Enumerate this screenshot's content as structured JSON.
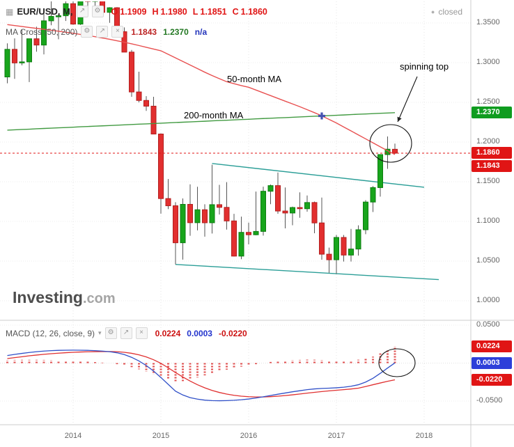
{
  "header": {
    "symbol_title": "EUR/USD, M,",
    "ohlc": [
      {
        "label": "O",
        "value": "1.1909"
      },
      {
        "label": "H",
        "value": "1.1980"
      },
      {
        "label": "L",
        "value": "1.1851"
      },
      {
        "label": "C",
        "value": "1.1860"
      }
    ],
    "status": "closed"
  },
  "indicator_rows": {
    "ma_cross": {
      "label": "MA Cross (50, 200)",
      "values": [
        {
          "text": "1.1843",
          "color": "#bb2222"
        },
        {
          "text": "1.2370",
          "color": "#227722"
        },
        {
          "text": "n/a",
          "color": "#2233bb"
        }
      ]
    },
    "macd": {
      "label": "MACD (12, 26, close, 9)",
      "values": [
        {
          "text": "0.0224",
          "color": "#cc1111"
        },
        {
          "text": "0.0003",
          "color": "#2233cc"
        },
        {
          "text": "-0.0220",
          "color": "#cc1111"
        }
      ]
    }
  },
  "annotations": {
    "ma50": "50-month MA",
    "ma200": "200-month MA",
    "spinning_top": "spinning top"
  },
  "watermark": {
    "brand": "Investing",
    "tld": ".com"
  },
  "icons": {
    "menu": "▦",
    "expand": "↗",
    "settings": "⚙",
    "close": "×",
    "caret": "▾",
    "dot": "●"
  },
  "badges": {
    "price": [
      {
        "text": "1.2370",
        "value": 1.237,
        "color": "#0f9c1f"
      },
      {
        "text": "1.1860",
        "value": 1.186,
        "color": "#e01515"
      },
      {
        "text": "1.1843",
        "value": 1.1843,
        "color": "#e01515"
      }
    ],
    "macd": [
      {
        "text": "0.0224",
        "value": 0.0224,
        "color": "#e01515"
      },
      {
        "text": "0.0003",
        "value": 0.0003,
        "color": "#2d3fd9"
      },
      {
        "text": "-0.0220",
        "value": -0.022,
        "color": "#e01515"
      }
    ]
  },
  "chart_data": [
    {
      "type": "candlestick",
      "title": "EUR/USD, Monthly",
      "start_month": "2013-04",
      "ylim": [
        0.98,
        1.375
      ],
      "y_ticks": [
        1.35,
        1.3,
        1.25,
        1.2,
        1.15,
        1.1,
        1.05,
        1.0
      ],
      "x_ticks": [
        {
          "label": "2014",
          "index": 9
        },
        {
          "label": "2015",
          "index": 21
        },
        {
          "label": "2016",
          "index": 33
        },
        {
          "label": "2017",
          "index": 45
        },
        {
          "label": "2018",
          "index": 57
        }
      ],
      "colors": {
        "up": "#18a51c",
        "up_border": "#0d7d10",
        "down": "#e22f2f",
        "down_border": "#b21f1f",
        "wick": "#555555",
        "trendline": "#2b9e97"
      },
      "price_line": {
        "value": 1.186,
        "color": "#e01515",
        "style": "dotted"
      },
      "cross_marker": {
        "index": 43,
        "price": 1.2329,
        "color": "#4553b0"
      },
      "candles": [
        [
          "2013-04",
          1.282,
          1.3243,
          1.274,
          1.3168
        ],
        [
          "2013-05",
          1.3168,
          1.3306,
          1.2796,
          1.2997
        ],
        [
          "2013-06",
          1.2997,
          1.3415,
          1.2967,
          1.301
        ],
        [
          "2013-07",
          1.301,
          1.3302,
          1.2755,
          1.3301
        ],
        [
          "2013-08",
          1.3301,
          1.3453,
          1.3138,
          1.3222
        ],
        [
          "2013-09",
          1.3222,
          1.3645,
          1.3104,
          1.3527
        ],
        [
          "2013-10",
          1.3527,
          1.3832,
          1.3472,
          1.3583
        ],
        [
          "2013-11",
          1.3583,
          1.3617,
          1.3295,
          1.3591
        ],
        [
          "2013-12",
          1.3591,
          1.3893,
          1.3525,
          1.3743
        ],
        [
          "2014-01",
          1.3743,
          1.3776,
          1.3477,
          1.3486
        ],
        [
          "2014-02",
          1.3486,
          1.3824,
          1.3475,
          1.3802
        ],
        [
          "2014-03",
          1.3802,
          1.3966,
          1.3704,
          1.3772
        ],
        [
          "2014-04",
          1.3772,
          1.3905,
          1.3673,
          1.3866
        ],
        [
          "2014-05",
          1.3866,
          1.3993,
          1.3586,
          1.3634
        ],
        [
          "2014-06",
          1.3634,
          1.3699,
          1.3502,
          1.3692
        ],
        [
          "2014-07",
          1.3692,
          1.37,
          1.3366,
          1.339
        ],
        [
          "2014-08",
          1.339,
          1.3444,
          1.3132,
          1.3133
        ],
        [
          "2014-09",
          1.3133,
          1.316,
          1.257,
          1.2631
        ],
        [
          "2014-10",
          1.2631,
          1.2886,
          1.25,
          1.2524
        ],
        [
          "2014-11",
          1.2524,
          1.2578,
          1.2392,
          1.2452
        ],
        [
          "2014-12",
          1.2452,
          1.257,
          1.2097,
          1.2101
        ],
        [
          "2015-01",
          1.2101,
          1.2109,
          1.1098,
          1.1288
        ],
        [
          "2015-02",
          1.1288,
          1.1534,
          1.1155,
          1.1197
        ],
        [
          "2015-03",
          1.1197,
          1.1242,
          1.0458,
          1.0731
        ],
        [
          "2015-04",
          1.0731,
          1.129,
          1.0519,
          1.1215
        ],
        [
          "2015-05",
          1.1215,
          1.1467,
          1.0819,
          1.0984
        ],
        [
          "2015-06",
          1.0984,
          1.1436,
          1.0887,
          1.1147
        ],
        [
          "2015-07",
          1.1147,
          1.1216,
          1.0808,
          1.0983
        ],
        [
          "2015-08",
          1.0983,
          1.1714,
          1.0848,
          1.1211
        ],
        [
          "2015-09",
          1.1211,
          1.146,
          1.1087,
          1.1177
        ],
        [
          "2015-10",
          1.1177,
          1.1495,
          1.0897,
          1.1006
        ],
        [
          "2015-11",
          1.1006,
          1.1095,
          1.0558,
          1.0563
        ],
        [
          "2015-12",
          1.0563,
          1.106,
          1.0524,
          1.0862
        ],
        [
          "2016-01",
          1.0862,
          1.0985,
          1.0711,
          1.0832
        ],
        [
          "2016-02",
          1.0832,
          1.1376,
          1.0826,
          1.0874
        ],
        [
          "2016-03",
          1.0874,
          1.1437,
          1.0821,
          1.138
        ],
        [
          "2016-04",
          1.138,
          1.1465,
          1.1217,
          1.1451
        ],
        [
          "2016-05",
          1.1451,
          1.1616,
          1.1097,
          1.1131
        ],
        [
          "2016-06",
          1.1131,
          1.1428,
          1.0912,
          1.1106
        ],
        [
          "2016-07",
          1.1106,
          1.1186,
          1.0952,
          1.1175
        ],
        [
          "2016-08",
          1.1175,
          1.1366,
          1.1046,
          1.116
        ],
        [
          "2016-09",
          1.116,
          1.1327,
          1.1123,
          1.1238
        ],
        [
          "2016-10",
          1.1238,
          1.125,
          1.0851,
          1.0981
        ],
        [
          "2016-11",
          1.0981,
          1.13,
          1.0518,
          1.0587
        ],
        [
          "2016-12",
          1.0587,
          1.067,
          1.0352,
          1.0517
        ],
        [
          "2017-01",
          1.0517,
          1.083,
          1.0341,
          1.0798
        ],
        [
          "2017-02",
          1.0798,
          1.0829,
          1.0494,
          1.0576
        ],
        [
          "2017-03",
          1.0576,
          1.0906,
          1.0495,
          1.0652
        ],
        [
          "2017-04",
          1.0652,
          1.0951,
          1.0569,
          1.0895
        ],
        [
          "2017-05",
          1.0895,
          1.1268,
          1.0839,
          1.1244
        ],
        [
          "2017-06",
          1.1244,
          1.1445,
          1.1118,
          1.1426
        ],
        [
          "2017-07",
          1.1426,
          1.1846,
          1.1312,
          1.1842
        ],
        [
          "2017-08",
          1.1842,
          1.207,
          1.1662,
          1.191
        ],
        [
          "2017-09",
          1.1909,
          1.198,
          1.1851,
          1.186
        ]
      ],
      "overlays": [
        {
          "name": "50-month MA",
          "color": "#e85050",
          "current": 1.1843,
          "values": [
            1.348,
            1.3468,
            1.3456,
            1.3444,
            1.3432,
            1.342,
            1.3408,
            1.3396,
            1.3383,
            1.337,
            1.3356,
            1.3342,
            1.3327,
            1.3311,
            1.3294,
            1.3276,
            1.3257,
            1.3237,
            1.3216,
            1.3194,
            1.3172,
            1.315,
            1.3105,
            1.306,
            1.3015,
            1.297,
            1.2925,
            1.288,
            1.2838,
            1.2798,
            1.276,
            1.2735,
            1.2711,
            1.269,
            1.2655,
            1.262,
            1.2585,
            1.255,
            1.2515,
            1.248,
            1.2445,
            1.2408,
            1.237,
            1.233,
            1.2285,
            1.224,
            1.219,
            1.214,
            1.209,
            1.204,
            1.199,
            1.194,
            1.189,
            1.1843
          ]
        },
        {
          "name": "200-month MA",
          "color": "#419a41",
          "current": 1.237,
          "values": [
            1.215,
            1.2154,
            1.2158,
            1.2162,
            1.2167,
            1.2171,
            1.2175,
            1.2179,
            1.2183,
            1.2187,
            1.2192,
            1.2196,
            1.22,
            1.2204,
            1.2208,
            1.2212,
            1.2217,
            1.2221,
            1.2225,
            1.2229,
            1.2233,
            1.2237,
            1.2242,
            1.2246,
            1.225,
            1.2254,
            1.2258,
            1.2262,
            1.2267,
            1.2271,
            1.2275,
            1.2279,
            1.2283,
            1.2287,
            1.2292,
            1.2296,
            1.23,
            1.2304,
            1.2308,
            1.2312,
            1.2316,
            1.2321,
            1.2325,
            1.2329,
            1.2333,
            1.2337,
            1.2341,
            1.2346,
            1.235,
            1.2354,
            1.2358,
            1.2362,
            1.2366,
            1.237
          ]
        }
      ],
      "trendlines": [
        {
          "name": "upper",
          "from": {
            "index": 28,
            "price": 1.173
          },
          "to": {
            "index": 57,
            "price": 1.143
          }
        },
        {
          "name": "lower",
          "from": {
            "index": 23,
            "price": 1.0458
          },
          "to": {
            "index": 59,
            "price": 1.0267
          }
        }
      ]
    },
    {
      "type": "macd",
      "title": "MACD (12, 26, close, 9)",
      "ylim": [
        -0.055,
        0.055
      ],
      "y_ticks": [
        0.05,
        -0.05
      ],
      "last_values": {
        "histogram": 0.0224,
        "macd": 0.0003,
        "signal": -0.022
      },
      "histogram_note": "histogram = macd - signal",
      "colors": {
        "macd_line": "#3050c8",
        "signal_line": "#e03030",
        "histogram": "#e05050"
      },
      "macd": [
        0.01,
        0.0115,
        0.0128,
        0.014,
        0.015,
        0.0158,
        0.0164,
        0.0168,
        0.017,
        0.0171,
        0.017,
        0.0168,
        0.0164,
        0.0158,
        0.015,
        0.0136,
        0.0112,
        0.0076,
        0.0028,
        -0.0032,
        -0.0104,
        -0.019,
        -0.028,
        -0.037,
        -0.042,
        -0.0455,
        -0.0475,
        -0.0488,
        -0.0494,
        -0.0496,
        -0.0494,
        -0.049,
        -0.0483,
        -0.0473,
        -0.046,
        -0.0444,
        -0.0427,
        -0.041,
        -0.0394,
        -0.0378,
        -0.0364,
        -0.035,
        -0.034,
        -0.0334,
        -0.033,
        -0.0325,
        -0.0318,
        -0.0305,
        -0.0285,
        -0.025,
        -0.02,
        -0.0135,
        -0.0065,
        0.0003
      ],
      "signal": [
        0.006,
        0.0072,
        0.0084,
        0.0096,
        0.0106,
        0.0116,
        0.0124,
        0.0131,
        0.0137,
        0.0142,
        0.0146,
        0.0149,
        0.0151,
        0.0152,
        0.0152,
        0.015,
        0.0142,
        0.0129,
        0.0109,
        0.0081,
        0.0044,
        -0.0003,
        -0.0062,
        -0.0124,
        -0.0183,
        -0.0237,
        -0.0285,
        -0.0326,
        -0.036,
        -0.0387,
        -0.0408,
        -0.0424,
        -0.0436,
        -0.0443,
        -0.0446,
        -0.0446,
        -0.0442,
        -0.0436,
        -0.0428,
        -0.0418,
        -0.0407,
        -0.0396,
        -0.0385,
        -0.0375,
        -0.0366,
        -0.0358,
        -0.035,
        -0.0341,
        -0.033,
        -0.0308,
        -0.0285,
        -0.0262,
        -0.024,
        -0.022
      ]
    }
  ]
}
